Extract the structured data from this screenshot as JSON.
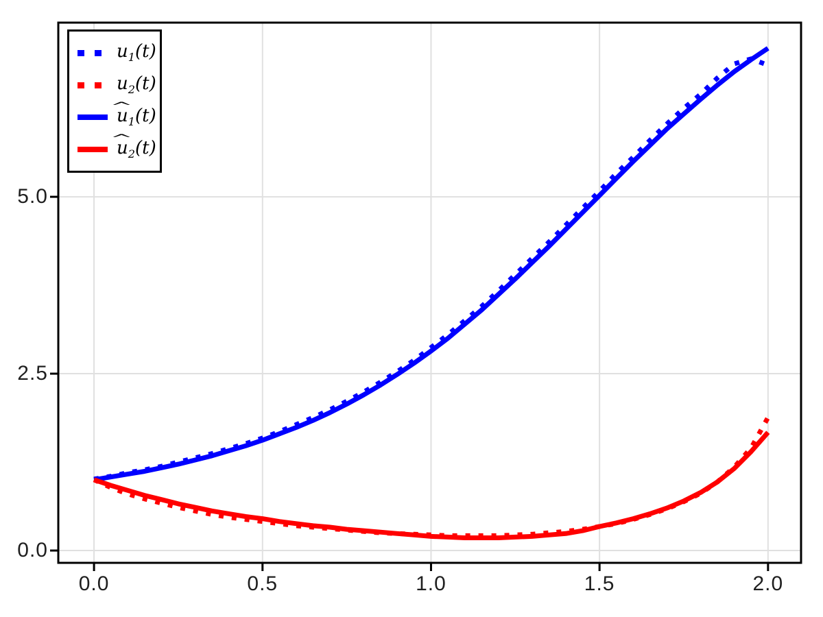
{
  "chart_data": {
    "type": "line",
    "title": "",
    "xlabel": "",
    "ylabel": "",
    "grid": true,
    "legend_position": "top-left",
    "xlim": [
      -0.106,
      2.098
    ],
    "ylim": [
      -0.174,
      7.462
    ],
    "xticks": {
      "values": [
        0.0,
        0.5,
        1.0,
        1.5,
        2.0
      ],
      "labels": [
        "0.0",
        "0.5",
        "1.0",
        "1.5",
        "2.0"
      ]
    },
    "yticks": {
      "values": [
        0.0,
        2.5,
        5.0
      ],
      "labels": [
        "0.0",
        "2.5",
        "5.0"
      ]
    },
    "colors": {
      "series_blue": "#0000ff",
      "series_red": "#ff0000",
      "grid": "#e0e0e0",
      "axis": "#000000",
      "tick_label": "#1f1f1f",
      "background": "#ffffff"
    },
    "t": [
      0,
      0.05,
      0.1,
      0.15,
      0.2,
      0.25,
      0.3,
      0.35,
      0.4,
      0.45,
      0.5,
      0.55,
      0.6,
      0.65,
      0.7,
      0.75,
      0.8,
      0.85,
      0.9,
      0.95,
      1,
      1.05,
      1.1,
      1.15,
      1.2,
      1.25,
      1.3,
      1.35,
      1.4,
      1.45,
      1.5,
      1.55,
      1.6,
      1.65,
      1.7,
      1.75,
      1.8,
      1.85,
      1.9,
      1.95,
      2
    ],
    "series": [
      {
        "name": "u1-data",
        "label": "u₁(t)",
        "hat": "",
        "base": "u",
        "sub": "1",
        "args": "(t)",
        "color": "#0000ff",
        "style": "dotted",
        "values": [
          1.01,
          1.05,
          1.1,
          1.14,
          1.19,
          1.25,
          1.31,
          1.37,
          1.44,
          1.51,
          1.59,
          1.68,
          1.78,
          1.88,
          1.99,
          2.11,
          2.24,
          2.38,
          2.53,
          2.69,
          2.87,
          3.05,
          3.25,
          3.45,
          3.67,
          3.9,
          4.13,
          4.36,
          4.6,
          4.84,
          5.08,
          5.33,
          5.56,
          5.8,
          6.03,
          6.25,
          6.45,
          6.68,
          6.88,
          6.95,
          6.86
        ]
      },
      {
        "name": "u2-data",
        "label": "u₂(t)",
        "hat": "",
        "base": "u",
        "sub": "2",
        "args": "(t)",
        "color": "#ff0000",
        "style": "dotted",
        "values": [
          1.0,
          0.89,
          0.8,
          0.73,
          0.67,
          0.61,
          0.56,
          0.51,
          0.47,
          0.44,
          0.41,
          0.38,
          0.35,
          0.33,
          0.31,
          0.29,
          0.27,
          0.25,
          0.24,
          0.23,
          0.22,
          0.21,
          0.21,
          0.21,
          0.21,
          0.22,
          0.23,
          0.25,
          0.27,
          0.3,
          0.34,
          0.38,
          0.44,
          0.51,
          0.59,
          0.69,
          0.81,
          0.97,
          1.18,
          1.45,
          1.88
        ]
      },
      {
        "name": "u1-fit",
        "label": "û₁(t)",
        "hat": "^",
        "base": "u",
        "sub": "1",
        "args": "(t)",
        "color": "#0000ff",
        "style": "solid",
        "values": [
          1.0,
          1.04,
          1.08,
          1.12,
          1.17,
          1.22,
          1.28,
          1.34,
          1.41,
          1.48,
          1.56,
          1.65,
          1.74,
          1.84,
          1.95,
          2.07,
          2.2,
          2.34,
          2.49,
          2.65,
          2.82,
          3.0,
          3.2,
          3.4,
          3.62,
          3.84,
          4.07,
          4.3,
          4.54,
          4.78,
          5.02,
          5.26,
          5.5,
          5.73,
          5.96,
          6.17,
          6.38,
          6.58,
          6.77,
          6.94,
          7.1
        ]
      },
      {
        "name": "u2-fit",
        "label": "û₂(t)",
        "hat": "^",
        "base": "u",
        "sub": "2",
        "args": "(t)",
        "color": "#ff0000",
        "style": "solid",
        "values": [
          1.0,
          0.92,
          0.85,
          0.78,
          0.72,
          0.66,
          0.61,
          0.56,
          0.52,
          0.48,
          0.45,
          0.41,
          0.38,
          0.35,
          0.33,
          0.3,
          0.28,
          0.26,
          0.24,
          0.22,
          0.2,
          0.19,
          0.18,
          0.18,
          0.18,
          0.19,
          0.2,
          0.22,
          0.24,
          0.28,
          0.34,
          0.39,
          0.45,
          0.52,
          0.6,
          0.7,
          0.82,
          0.97,
          1.16,
          1.4,
          1.67
        ]
      }
    ]
  }
}
